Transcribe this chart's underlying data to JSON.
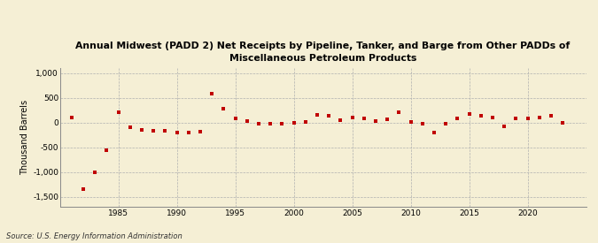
{
  "title": "Annual Midwest (PADD 2) Net Receipts by Pipeline, Tanker, and Barge from Other PADDs of\nMiscellaneous Petroleum Products",
  "ylabel": "Thousand Barrels",
  "source": "Source: U.S. Energy Information Administration",
  "background_color": "#f5efd5",
  "plot_bg_color": "#f5efd5",
  "marker_color": "#c00000",
  "ylim": [
    -1700,
    1100
  ],
  "yticks": [
    -1500,
    -1000,
    -500,
    0,
    500,
    1000
  ],
  "xlim": [
    1980,
    2025
  ],
  "xticks": [
    1985,
    1990,
    1995,
    2000,
    2005,
    2010,
    2015,
    2020
  ],
  "years": [
    1981,
    1982,
    1983,
    1984,
    1985,
    1986,
    1987,
    1988,
    1989,
    1990,
    1991,
    1992,
    1993,
    1994,
    1995,
    1996,
    1997,
    1998,
    1999,
    2000,
    2001,
    2002,
    2003,
    2004,
    2005,
    2006,
    2007,
    2008,
    2009,
    2010,
    2011,
    2012,
    2013,
    2014,
    2015,
    2016,
    2017,
    2018,
    2019,
    2020,
    2021,
    2022,
    2023
  ],
  "values": [
    100,
    -1350,
    -1000,
    -560,
    200,
    -100,
    -150,
    -170,
    -170,
    -200,
    -200,
    -180,
    575,
    270,
    75,
    25,
    -20,
    -30,
    -20,
    -10,
    5,
    150,
    130,
    50,
    100,
    75,
    30,
    60,
    200,
    10,
    -20,
    -200,
    -30,
    80,
    175,
    130,
    100,
    -80,
    75,
    75,
    100,
    130,
    -10
  ],
  "title_fontsize": 7.8,
  "tick_fontsize": 6.5,
  "ylabel_fontsize": 7.0,
  "source_fontsize": 6.0,
  "marker_size": 10,
  "grid_color": "#b0b0b0",
  "grid_linewidth": 0.5,
  "spine_color": "#888888"
}
